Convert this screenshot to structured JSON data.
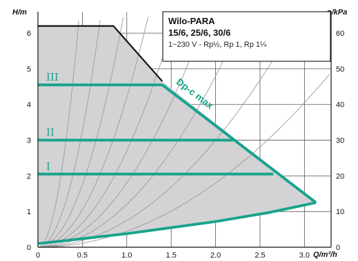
{
  "chart_data": {
    "type": "line",
    "title": "",
    "info_box": {
      "name": "Wilo-PARA",
      "models": "15/6, 25/6, 30/6",
      "spec": "1~230 V - Rp½, Rp 1, Rp 1¼"
    },
    "xlabel": "Q/m³/h",
    "ylabel_left": "H/m",
    "ylabel_right": "p/kPa",
    "xlim": [
      0,
      3.3
    ],
    "ylim_left": [
      0,
      6.6
    ],
    "ylim_right": [
      0,
      66
    ],
    "x_ticks": [
      {
        "value": 0,
        "label": "0"
      },
      {
        "value": 0.5,
        "label": "0.5"
      },
      {
        "value": 1.0,
        "label": "1.0"
      },
      {
        "value": 1.5,
        "label": "1.5"
      },
      {
        "value": 2.0,
        "label": "2.0"
      },
      {
        "value": 2.5,
        "label": "2.5"
      },
      {
        "value": 3.0,
        "label": "3.0"
      }
    ],
    "y_left_ticks": [
      {
        "value": 0,
        "label": "0"
      },
      {
        "value": 1,
        "label": "1"
      },
      {
        "value": 2,
        "label": "2"
      },
      {
        "value": 3,
        "label": "3"
      },
      {
        "value": 4,
        "label": "4"
      },
      {
        "value": 5,
        "label": "5"
      },
      {
        "value": 6,
        "label": "6"
      }
    ],
    "y_right_ticks": [
      {
        "value": 0,
        "label": "0"
      },
      {
        "value": 10,
        "label": "10"
      },
      {
        "value": 20,
        "label": "20"
      },
      {
        "value": 30,
        "label": "30"
      },
      {
        "value": 40,
        "label": "40"
      },
      {
        "value": 50,
        "label": "50"
      },
      {
        "value": 60,
        "label": "60"
      }
    ],
    "grid": true,
    "max_envelope": {
      "x": [
        0,
        0.85,
        1.4
      ],
      "y": [
        6.2,
        6.2,
        4.65
      ]
    },
    "dpc_max": {
      "label": "Dp-c max",
      "x": [
        0,
        1.4,
        3.13
      ],
      "y": [
        0.1,
        4.55,
        1.25
      ]
    },
    "min_curve": {
      "x": [
        0,
        1.0,
        2.0,
        2.6,
        3.13
      ],
      "y": [
        0.1,
        0.38,
        0.72,
        0.97,
        1.25
      ]
    },
    "speed_levels": [
      {
        "label": "III",
        "head": 4.55,
        "x_end": 1.4
      },
      {
        "label": "II",
        "head": 3.0,
        "x_end": 2.2
      },
      {
        "label": "I",
        "head": 2.05,
        "x_end": 2.65
      }
    ],
    "colors": {
      "accent": "#1aa38c",
      "area_fill": "#d3d3d6",
      "grid": "#555555",
      "system_curves": "#9a9a9a",
      "envelope": "#111111"
    }
  }
}
